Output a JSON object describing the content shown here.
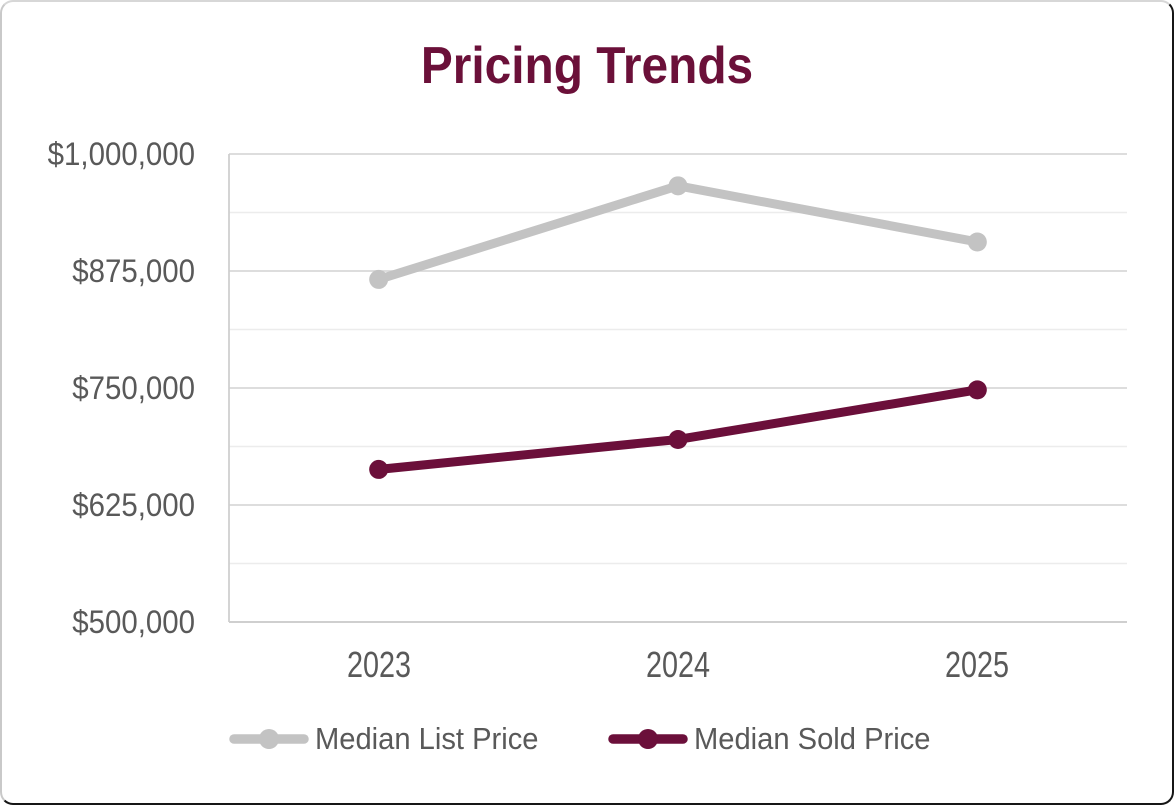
{
  "chart_data": {
    "type": "line",
    "title": "Pricing Trends",
    "categories": [
      "2023",
      "2024",
      "2025"
    ],
    "series": [
      {
        "name": "Median List Price",
        "color": "#c3c3c3",
        "values": [
          866000,
          966000,
          906000
        ]
      },
      {
        "name": "Median Sold Price",
        "color": "#6b0f3a",
        "values": [
          663000,
          695000,
          748000
        ]
      }
    ],
    "y_axis": {
      "min": 500000,
      "max": 1000000,
      "major_step": 125000,
      "minor_step": 62500,
      "tick_labels": [
        "$1,000,000",
        "$875,000",
        "$750,000",
        "$625,000",
        "$500,000"
      ]
    },
    "xlabel": "",
    "ylabel": "",
    "legend_position": "bottom-center",
    "grid": "horizontal-major-and-minor",
    "marker_style": "filled-circle"
  },
  "styles": {
    "title_color": "#6b1039",
    "axis_text_color": "#595959",
    "major_grid_color": "#d8d8d8",
    "minor_grid_color": "#ececec",
    "axis_line_color": "#cfcfcf",
    "background": "#ffffff",
    "frame_border_color": "#161616"
  }
}
